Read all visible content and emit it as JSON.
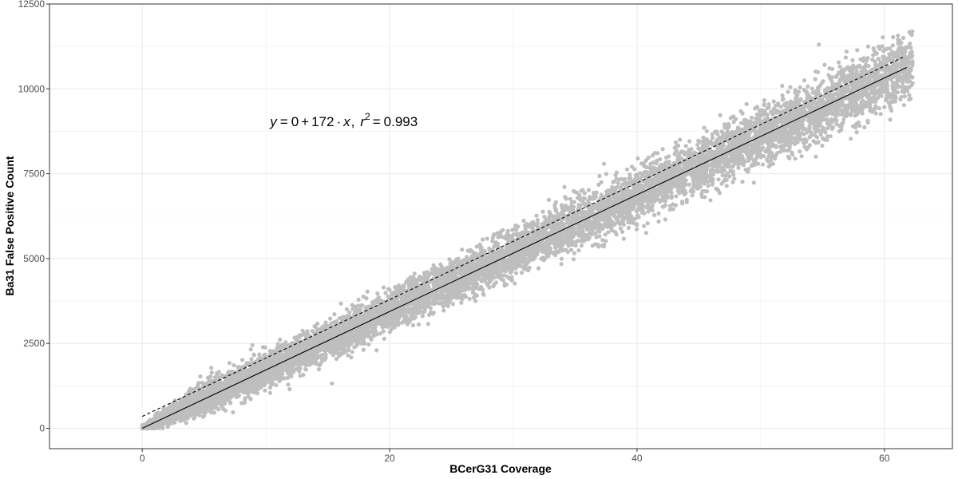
{
  "chart_data": {
    "type": "scatter",
    "title": "",
    "xlabel": "BCerG31 Coverage",
    "ylabel": "Ba31 False Positive Count",
    "xlim": [
      -7.5,
      65.5
    ],
    "ylim": [
      -600,
      12500
    ],
    "x_ticks": [
      0,
      20,
      40,
      60
    ],
    "y_ticks": [
      0,
      2500,
      5000,
      7500,
      10000,
      12500
    ],
    "x_tick_labels": [
      "0",
      "20",
      "40",
      "60"
    ],
    "y_tick_labels": [
      "0",
      "2500",
      "5000",
      "7500",
      "10000",
      "12500"
    ],
    "grid": true,
    "theme": "bw",
    "point_color": "#bebebe",
    "line_color": "#000000",
    "series": [
      {
        "kind": "points",
        "x_range": [
          0,
          62.3
        ],
        "trend_slope": 172,
        "trend_intercept": 0,
        "spread_at_x": [
          [
            0,
            60
          ],
          [
            5,
            450
          ],
          [
            20,
            520
          ],
          [
            40,
            680
          ],
          [
            60,
            850
          ]
        ],
        "n_points": 9000
      }
    ],
    "lines": [
      {
        "style": "solid",
        "slope": 172,
        "intercept": 0,
        "x_range": [
          0,
          61.8
        ]
      },
      {
        "style": "dashed",
        "slope": 172,
        "intercept": 350,
        "x_range": [
          0,
          61.5
        ]
      }
    ],
    "annotation": {
      "eq_y": "y",
      "eq_eq1": "=",
      "eq_b0": "0",
      "eq_plus": "+",
      "eq_b1": "172",
      "eq_dot": "·",
      "eq_x": "x",
      "eq_comma": ",",
      "eq_r": "r",
      "eq_exp": "2",
      "eq_eq2": "=",
      "eq_r2": "0.993",
      "anchor_x": 16.3,
      "anchor_y": 8900
    }
  }
}
